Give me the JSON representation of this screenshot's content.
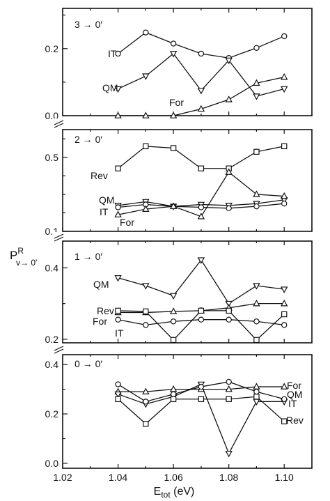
{
  "chart_data": {
    "type": "line",
    "xlabel": "E",
    "xlabel_sub": "tot",
    "xlabel_unit": " (eV)",
    "ylabel": "P",
    "ylabel_sup": "R",
    "ylabel_sub": "v→ 0′",
    "xlim": [
      1.02,
      1.11
    ],
    "x_ticks": [
      1.02,
      1.04,
      1.06,
      1.08,
      1.1
    ],
    "x_tick_labels": [
      "1.02",
      "1.04",
      "1.06",
      "1.08",
      "1.10"
    ],
    "x_minor_ticks": [
      1.03,
      1.05,
      1.07,
      1.09,
      1.11
    ],
    "x": [
      1.04,
      1.05,
      1.06,
      1.07,
      1.08,
      1.09,
      1.1
    ],
    "panels": [
      {
        "title": "3 → 0′",
        "ylim": [
          0.0,
          0.32
        ],
        "y_ticks": [
          0.0,
          0.2
        ],
        "y_tick_labels": [
          "0.0",
          "0.2"
        ],
        "y_minor_ticks": [
          0.1,
          0.3
        ],
        "series": [
          {
            "name": "IT",
            "marker": "circle",
            "values": [
              0.185,
              0.248,
              0.215,
              0.185,
              0.172,
              0.202,
              0.237
            ]
          },
          {
            "name": "QM",
            "marker": "triangle-down",
            "values": [
              0.08,
              0.118,
              0.185,
              0.075,
              0.165,
              0.058,
              0.08
            ]
          },
          {
            "name": "For",
            "marker": "triangle-up",
            "values": [
              0.0,
              0.0,
              0.0,
              0.02,
              0.048,
              0.097,
              0.115
            ]
          }
        ]
      },
      {
        "title": "2 → 0′",
        "ylim": [
          0.1,
          0.65
        ],
        "y_ticks": [
          0.1,
          0.5
        ],
        "y_tick_labels": [
          "0.1",
          "0.5"
        ],
        "y_minor_ticks": [
          0.2,
          0.3,
          0.4,
          0.6
        ],
        "series": [
          {
            "name": "Rev",
            "marker": "square",
            "values": [
              0.44,
              0.56,
              0.55,
              0.44,
              0.44,
              0.53,
              0.56
            ]
          },
          {
            "name": "QM",
            "marker": "triangle-down",
            "values": [
              0.24,
              0.26,
              0.235,
              0.245,
              0.24,
              0.25,
              0.27
            ]
          },
          {
            "name": "IT",
            "marker": "circle",
            "values": [
              0.23,
              0.245,
              0.235,
              0.23,
              0.225,
              0.235,
              0.25
            ]
          },
          {
            "name": "For",
            "marker": "triangle-up",
            "values": [
              0.19,
              0.22,
              0.235,
              0.18,
              0.42,
              0.3,
              0.29
            ]
          }
        ]
      },
      {
        "title": "1 → 0′",
        "ylim": [
          0.19,
          0.475
        ],
        "y_ticks": [
          0.2,
          0.4
        ],
        "y_tick_labels": [
          "0.2",
          "0.4"
        ],
        "y_minor_ticks": [
          0.3
        ],
        "series": [
          {
            "name": "QM",
            "marker": "triangle-down",
            "values": [
              0.372,
              0.35,
              0.322,
              0.422,
              0.3,
              0.35,
              0.34
            ]
          },
          {
            "name": "Rev",
            "marker": "triangle-up",
            "values": [
              0.275,
              0.275,
              0.278,
              0.28,
              0.288,
              0.3,
              0.3
            ]
          },
          {
            "name": "For",
            "marker": "square",
            "values": [
              0.28,
              0.278,
              0.198,
              0.28,
              0.28,
              0.198,
              0.27
            ]
          },
          {
            "name": "IT",
            "marker": "circle",
            "values": [
              0.255,
              0.24,
              0.25,
              0.255,
              0.255,
              0.25,
              0.24
            ]
          }
        ]
      },
      {
        "title": "0 → 0′",
        "ylim": [
          -0.02,
          0.44
        ],
        "y_ticks": [
          0.0,
          0.2,
          0.4
        ],
        "y_tick_labels": [
          "0.0",
          "0.2",
          "0.4"
        ],
        "y_minor_ticks": [
          0.1,
          0.3
        ],
        "series": [
          {
            "name": "For",
            "marker": "triangle-up",
            "values": [
              0.29,
              0.29,
              0.3,
              0.3,
              0.3,
              0.31,
              0.31
            ]
          },
          {
            "name": "QM",
            "marker": "triangle-down",
            "values": [
              0.28,
              0.24,
              0.27,
              0.32,
              0.04,
              0.25,
              0.25
            ]
          },
          {
            "name": "IT",
            "marker": "circle",
            "values": [
              0.32,
              0.25,
              0.28,
              0.31,
              0.33,
              0.29,
              0.26
            ]
          },
          {
            "name": "Rev",
            "marker": "square",
            "values": [
              0.26,
              0.16,
              0.26,
              0.26,
              0.26,
              0.27,
              0.17
            ]
          }
        ]
      }
    ]
  }
}
